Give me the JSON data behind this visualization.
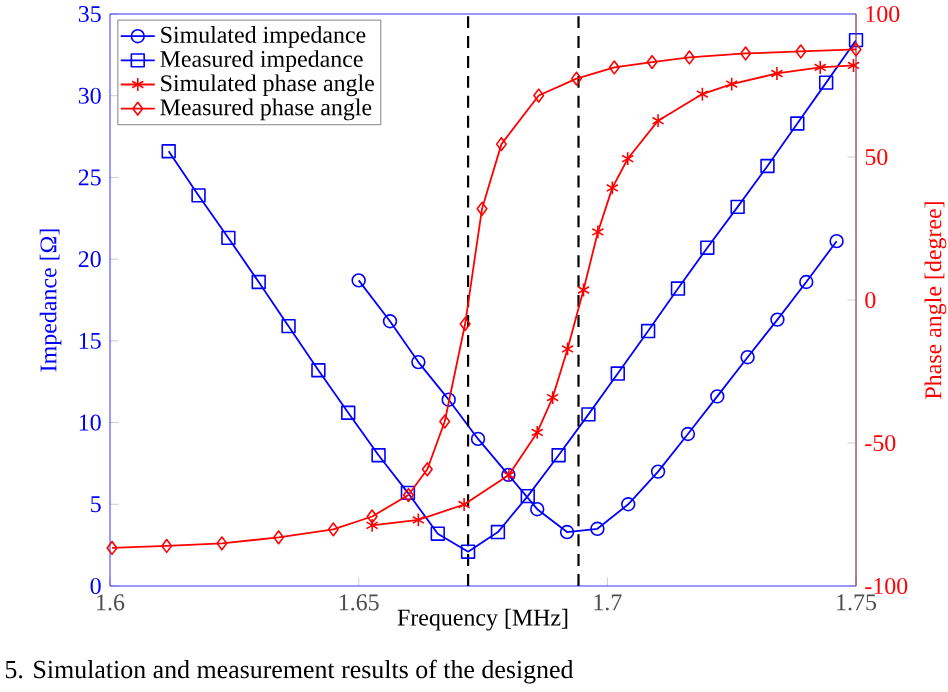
{
  "chart_data": {
    "type": "line",
    "xlabel": "Frequency [MHz]",
    "ylabel": "Impedance [Ω]",
    "y2label": "Phase angle [degree]",
    "xlim": [
      1.6,
      1.75
    ],
    "xticks": [
      1.6,
      1.65,
      1.7,
      1.75
    ],
    "ylim": [
      0,
      35
    ],
    "yticks": [
      0,
      5,
      10,
      15,
      20,
      25,
      30,
      35
    ],
    "y2lim": [
      -100,
      100
    ],
    "y2ticks": [
      -100,
      -50,
      0,
      50,
      100
    ],
    "legend": "top left",
    "grid": false,
    "line_style": "solid",
    "series": [
      {
        "name": "Simulated impedance",
        "color": "#0000ff",
        "marker": "circle",
        "x": [
          1.65,
          1.6563,
          1.662,
          1.6681,
          1.674,
          1.6801,
          1.6859,
          1.6919,
          1.698,
          1.7042,
          1.7102,
          1.7162,
          1.7221,
          1.7282,
          1.7342,
          1.74,
          1.7461
        ],
        "values": [
          18.7,
          16.2,
          13.7,
          11.4,
          9.0,
          6.8,
          4.7,
          3.3,
          3.5,
          5.0,
          7.0,
          9.3,
          11.6,
          14.0,
          16.3,
          18.6,
          21.1
        ]
      },
      {
        "name": "Measured impedance",
        "color": "#0000ff",
        "marker": "square",
        "x": [
          1.6118,
          1.6178,
          1.6238,
          1.6299,
          1.6359,
          1.6419,
          1.6479,
          1.654,
          1.6599,
          1.6659,
          1.672,
          1.678,
          1.684,
          1.6902,
          1.6962,
          1.7021,
          1.7082,
          1.7142,
          1.7201,
          1.7262,
          1.7322,
          1.7382,
          1.744,
          1.75
        ],
        "values": [
          26.6,
          23.9,
          21.3,
          18.6,
          15.9,
          13.2,
          10.6,
          8.0,
          5.7,
          3.2,
          2.1,
          3.3,
          5.5,
          8.0,
          10.5,
          13.0,
          15.6,
          18.2,
          20.7,
          23.2,
          25.7,
          28.3,
          30.8,
          33.4
        ]
      },
      {
        "name": "Simulated phase angle",
        "color": "#ff0000",
        "marker": "cross",
        "axis": "y2",
        "x": [
          1.6527,
          1.662,
          1.6712,
          1.6802,
          1.6859,
          1.689,
          1.692,
          1.6952,
          1.6981,
          1.701,
          1.7041,
          1.7102,
          1.7191,
          1.725,
          1.7341,
          1.7428,
          1.7495
        ],
        "values": [
          -78.8,
          -76.9,
          -71.5,
          -61.2,
          -46.3,
          -34.1,
          -17.1,
          3.5,
          23.8,
          39.2,
          49.4,
          62.7,
          72.0,
          75.5,
          79.2,
          81.3,
          82.0
        ]
      },
      {
        "name": "Measured phase angle",
        "color": "#ff0000",
        "marker": "diamond",
        "axis": "y2",
        "x": [
          1.6004,
          1.6114,
          1.6225,
          1.6339,
          1.6449,
          1.6527,
          1.66,
          1.6638,
          1.6673,
          1.6714,
          1.6748,
          1.6787,
          1.6862,
          1.6938,
          1.7014,
          1.709,
          1.7165,
          1.7278,
          1.7389,
          1.75
        ],
        "values": [
          -86.7,
          -86.0,
          -85.1,
          -83.0,
          -80.2,
          -75.7,
          -68.2,
          -59.2,
          -42.5,
          -8.4,
          31.9,
          54.5,
          71.5,
          77.4,
          81.3,
          83.2,
          84.8,
          86.2,
          86.9,
          87.6
        ]
      }
    ],
    "ref_lines": [
      {
        "axis": "x",
        "value": 1.672,
        "color": "#000000",
        "line_style": "dashed"
      },
      {
        "axis": "x",
        "value": 1.6942,
        "color": "#000000",
        "line_style": "dashed"
      }
    ],
    "annotations": [
      "5. Simulation and measurement results of the designed"
    ]
  }
}
